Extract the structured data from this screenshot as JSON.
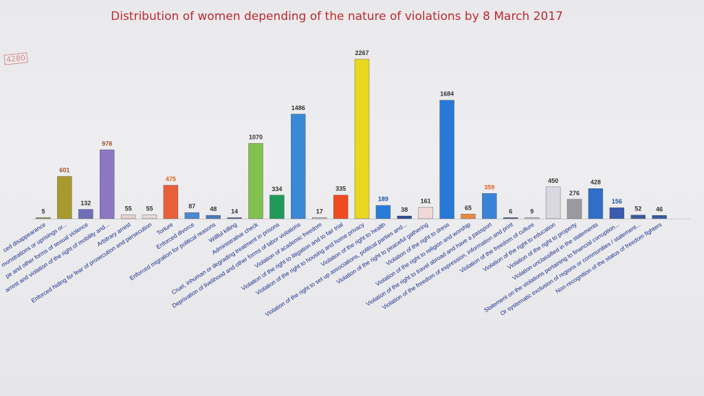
{
  "chart_data": {
    "type": "bar",
    "title": "Distribution of women depending of the nature of violations by 8 March 2017",
    "total_label": "4280",
    "categories": [
      "ced disappearance",
      "monstrations or uprisings or...",
      "pe and other forms of sexual violence",
      "arrest and violation of the right of mobility and...",
      "Arbitrary arrest",
      "Enforced hiding for fear of prosecution and persecution",
      "Torture",
      "Enforced divorce",
      "Enforced migration for political reasons",
      "Willful killing",
      "Administrative check",
      "Cruel, inhuman or degrading treatment in prisons",
      "Deprivation of livelihood and other forms of labor violations",
      "Violation of academic freedom",
      "Violation of the right to litigation and to fair trial",
      "Violation of the right to housing and home privacy",
      "Violation of the right to health",
      "Violation of the right to set up associations, political parties and...",
      "Violation of the right to peaceful gathering",
      "Violation of the right to dress",
      "Violation of the right to religion and worship",
      "Violation of the right to travel abroad and have a passport",
      "Violation of the freedom of expression, information and print",
      "Violation of the freedom of culture",
      "Violation of the right to education",
      "Violation of the right to property",
      "Violation unclassified in the statements",
      "Statement on the violations pertaining to financial corruption...",
      "Or systematic exclusion of regions or communities / statement...",
      "Non-recognition of the status of freedom fighters"
    ],
    "values": [
      5,
      601,
      132,
      978,
      55,
      55,
      475,
      87,
      48,
      14,
      1070,
      334,
      1486,
      17,
      335,
      2267,
      189,
      38,
      161,
      1684,
      65,
      359,
      6,
      9,
      450,
      276,
      428,
      156,
      52,
      46
    ],
    "colors": [
      "#8a8a4a",
      "#a89a2c",
      "#6f6fb8",
      "#8d76c2",
      "#e8d0d0",
      "#e8d8d8",
      "#e8603a",
      "#4a88d0",
      "#4a78c0",
      "#4a5a90",
      "#82c050",
      "#1f9a5a",
      "#3a88d8",
      "#c8c8d0",
      "#f04a20",
      "#e8d820",
      "#2a7ad8",
      "#2a4a90",
      "#f0d8d8",
      "#2878d8",
      "#e88a40",
      "#3a82d8",
      "#3a4a7a",
      "#c8c8d8",
      "#d8d8e0",
      "#9a9aa0",
      "#2f6fc8",
      "#3a5ab0",
      "#3a5a9a",
      "#3a5aa0"
    ],
    "label_colors": [
      "#333333",
      "#a0522d",
      "#333333",
      "#a0522d",
      "#333333",
      "#333333",
      "#e06020",
      "#333333",
      "#333333",
      "#333333",
      "#333333",
      "#333333",
      "#333333",
      "#333333",
      "#333333",
      "#333333",
      "#1a55a8",
      "#333333",
      "#333333",
      "#333333",
      "#333333",
      "#e06020",
      "#333333",
      "#333333",
      "#333333",
      "#333333",
      "#333333",
      "#1a55a8",
      "#333333",
      "#333333"
    ],
    "xlabel": "",
    "ylabel": "",
    "ylim": [
      0,
      2400
    ],
    "grid": false,
    "legend": "none"
  }
}
